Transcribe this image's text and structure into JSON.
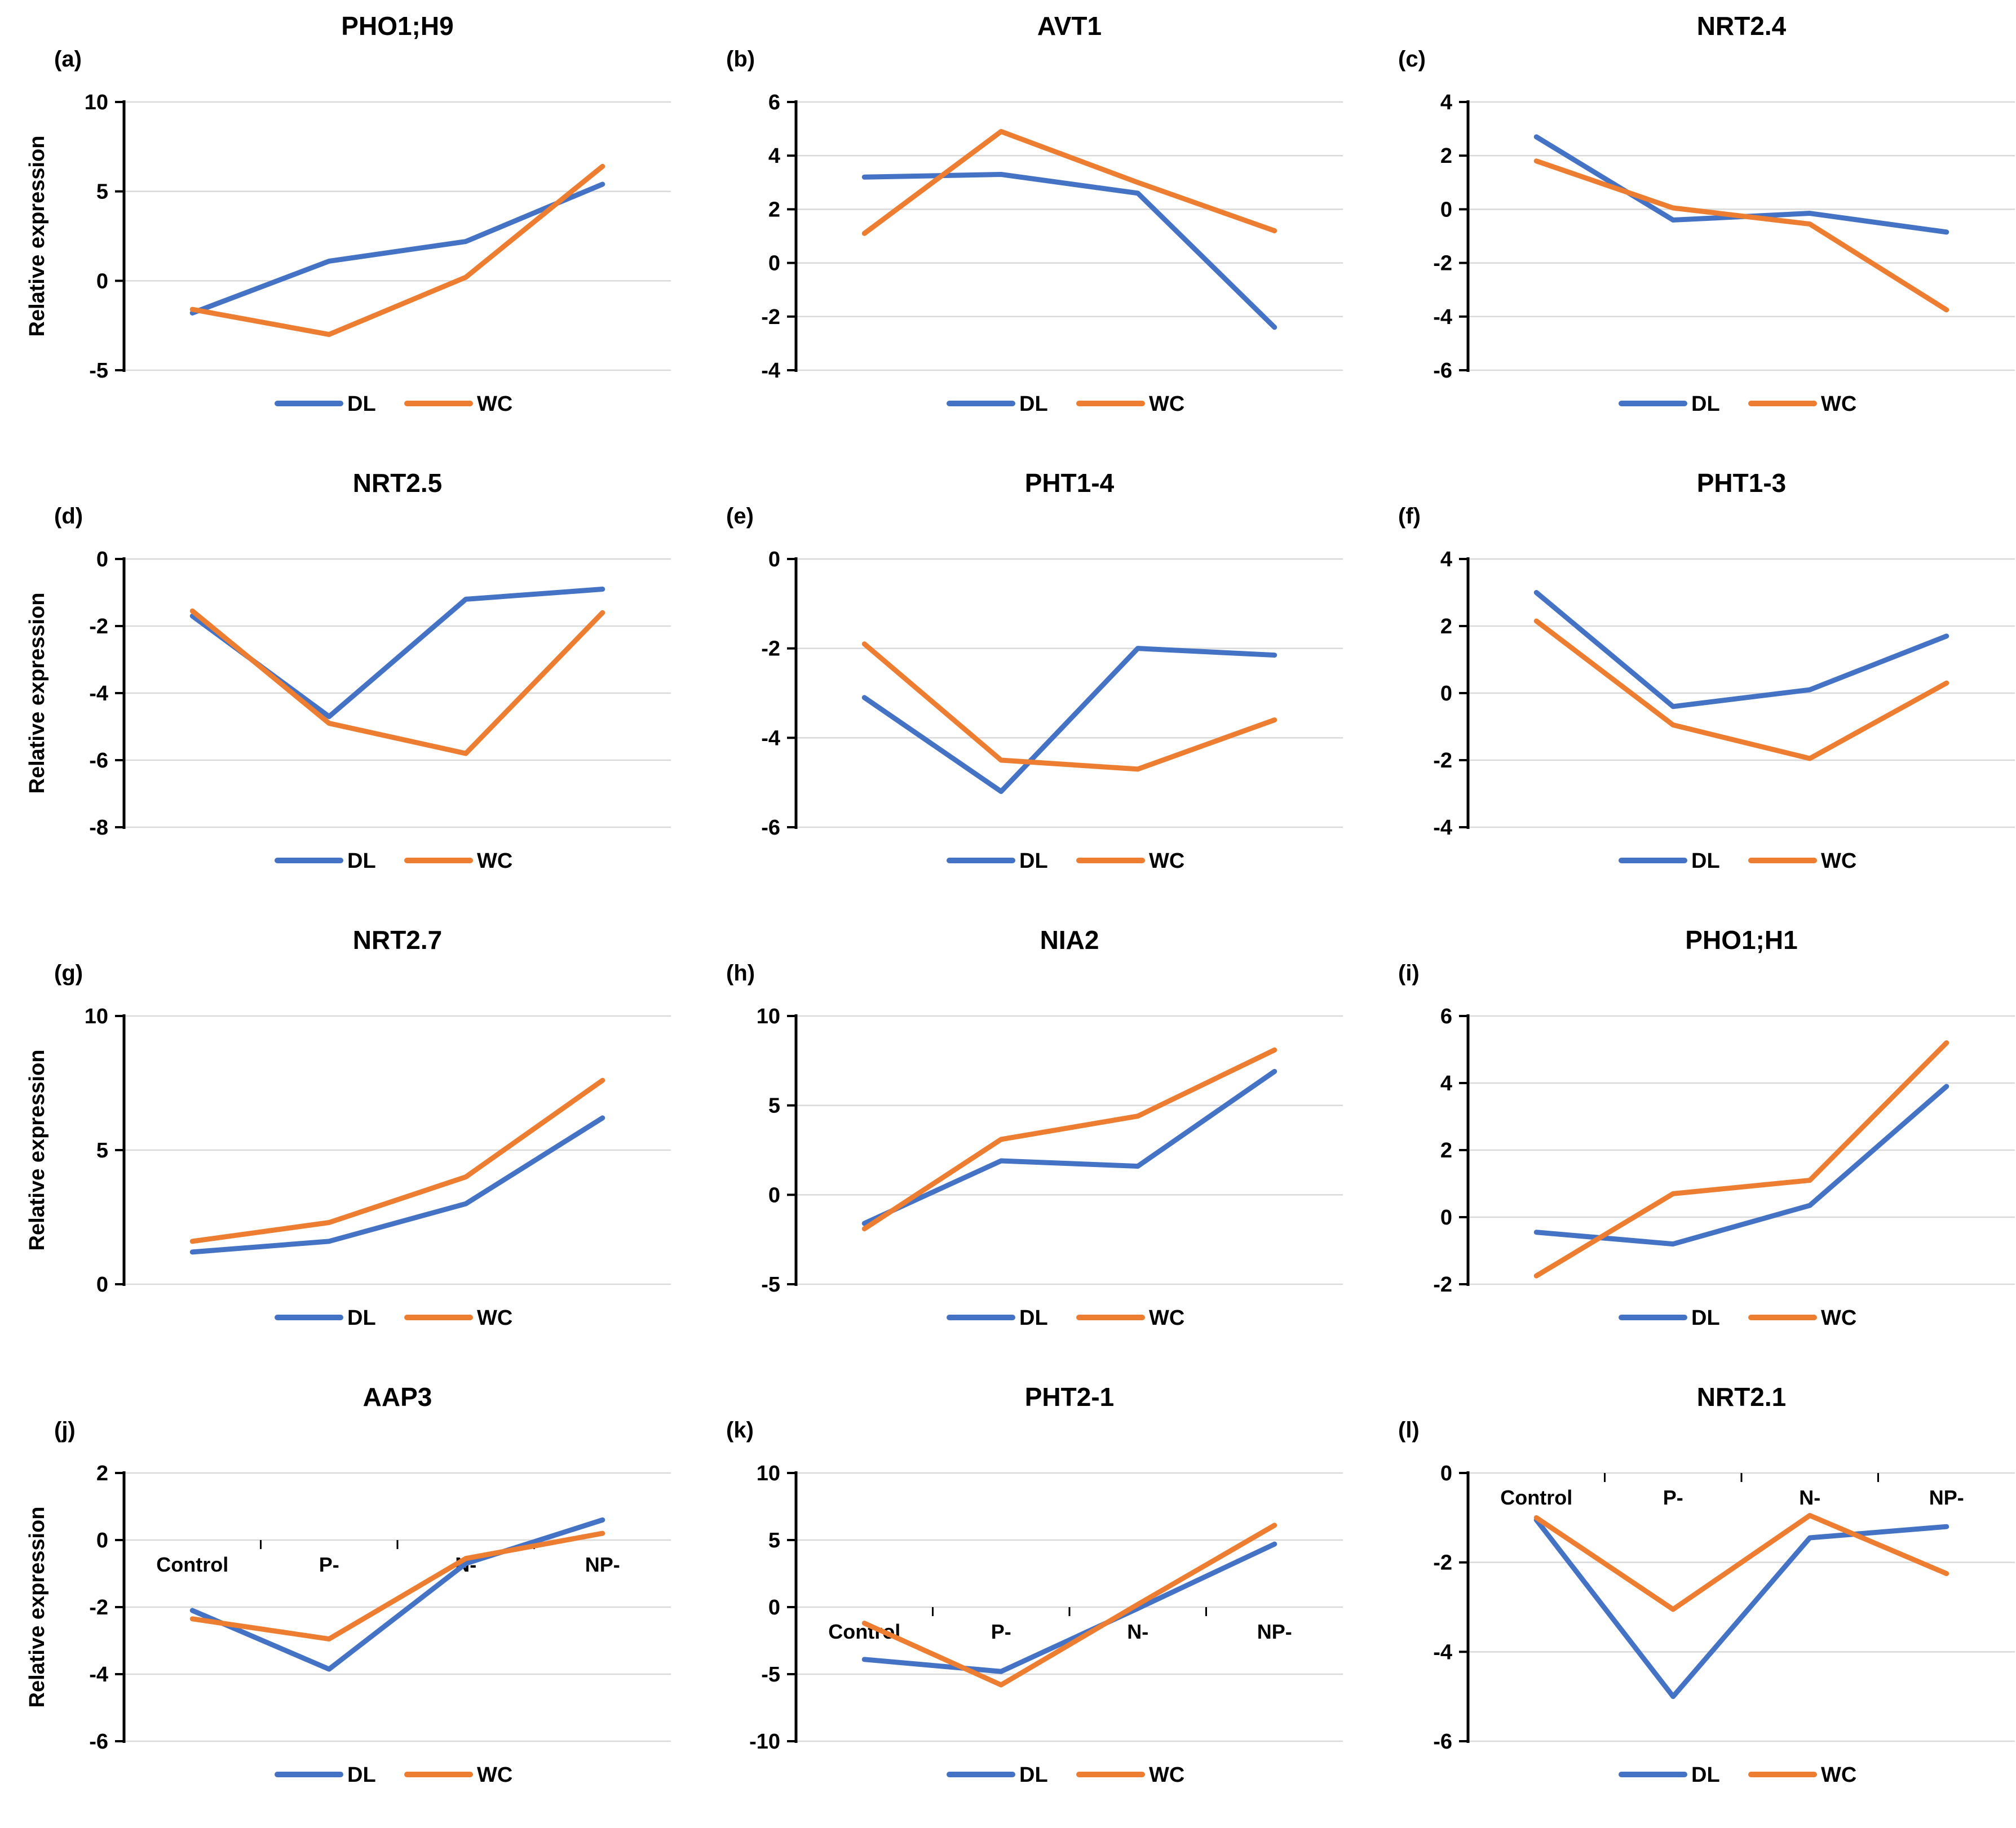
{
  "page": {
    "background": "#FFFFFF"
  },
  "colors": {
    "DL": "#4472C4",
    "WC": "#ED7D31",
    "gridline": "#D9D9D9",
    "axis": "#000000",
    "text": "#000000"
  },
  "y_axis_title": "Relative expression",
  "categories": [
    "Control",
    "P-",
    "N-",
    "NP-"
  ],
  "legend": {
    "entries": [
      "DL",
      "WC"
    ],
    "position": "bottom"
  },
  "chart_data": [
    {
      "panel_label": "(a)",
      "title": "PHO1;H9",
      "type": "line",
      "ylim": [
        -5,
        10
      ],
      "y_ticks": [
        10,
        5,
        0,
        -5
      ],
      "grid": true,
      "show_y_axis_title": true,
      "show_x_labels": false,
      "series": [
        {
          "name": "DL",
          "values": [
            -1.8,
            1.1,
            2.2,
            5.4
          ]
        },
        {
          "name": "WC",
          "values": [
            -1.6,
            -3.0,
            0.2,
            6.4
          ]
        }
      ]
    },
    {
      "panel_label": "(b)",
      "title": "AVT1",
      "type": "line",
      "ylim": [
        -4,
        6
      ],
      "y_ticks": [
        6,
        4,
        2,
        0,
        -2,
        -4
      ],
      "grid": true,
      "show_y_axis_title": false,
      "show_x_labels": false,
      "series": [
        {
          "name": "DL",
          "values": [
            3.2,
            3.3,
            2.6,
            -2.4
          ]
        },
        {
          "name": "WC",
          "values": [
            1.1,
            4.9,
            3.0,
            1.2
          ]
        }
      ]
    },
    {
      "panel_label": "(c)",
      "title": "NRT2.4",
      "type": "line",
      "ylim": [
        -6,
        4
      ],
      "y_ticks": [
        4,
        2,
        0,
        -2,
        -4,
        -6
      ],
      "grid": true,
      "show_y_axis_title": false,
      "show_x_labels": false,
      "series": [
        {
          "name": "DL",
          "values": [
            2.7,
            -0.4,
            -0.15,
            -0.85
          ]
        },
        {
          "name": "WC",
          "values": [
            1.8,
            0.05,
            -0.55,
            -3.75
          ]
        }
      ]
    },
    {
      "panel_label": "(d)",
      "title": "NRT2.5",
      "type": "line",
      "ylim": [
        -8,
        0
      ],
      "y_ticks": [
        0,
        -2,
        -4,
        -6,
        -8
      ],
      "grid": true,
      "show_y_axis_title": true,
      "show_x_labels": false,
      "series": [
        {
          "name": "DL",
          "values": [
            -1.7,
            -4.7,
            -1.2,
            -0.9
          ]
        },
        {
          "name": "WC",
          "values": [
            -1.55,
            -4.9,
            -5.8,
            -1.6
          ]
        }
      ]
    },
    {
      "panel_label": "(e)",
      "title": "PHT1-4",
      "type": "line",
      "ylim": [
        -6,
        0
      ],
      "y_ticks": [
        0,
        -2,
        -4,
        -6
      ],
      "grid": true,
      "show_y_axis_title": false,
      "show_x_labels": false,
      "series": [
        {
          "name": "DL",
          "values": [
            -3.1,
            -5.2,
            -2.0,
            -2.15
          ]
        },
        {
          "name": "WC",
          "values": [
            -1.9,
            -4.5,
            -4.7,
            -3.6
          ]
        }
      ]
    },
    {
      "panel_label": "(f)",
      "title": "PHT1-3",
      "type": "line",
      "ylim": [
        -4,
        4
      ],
      "y_ticks": [
        4,
        2,
        0,
        -2,
        -4
      ],
      "grid": true,
      "show_y_axis_title": false,
      "show_x_labels": false,
      "series": [
        {
          "name": "DL",
          "values": [
            3.0,
            -0.4,
            0.1,
            1.7
          ]
        },
        {
          "name": "WC",
          "values": [
            2.15,
            -0.95,
            -1.95,
            0.3
          ]
        }
      ]
    },
    {
      "panel_label": "(g)",
      "title": "NRT2.7",
      "type": "line",
      "ylim": [
        0,
        10
      ],
      "y_ticks": [
        10,
        5,
        0
      ],
      "grid": true,
      "show_y_axis_title": true,
      "show_x_labels": false,
      "series": [
        {
          "name": "DL",
          "values": [
            1.2,
            1.6,
            3.0,
            6.2
          ]
        },
        {
          "name": "WC",
          "values": [
            1.6,
            2.3,
            4.0,
            7.6
          ]
        }
      ]
    },
    {
      "panel_label": "(h)",
      "title": "NIA2",
      "type": "line",
      "ylim": [
        -5,
        10
      ],
      "y_ticks": [
        10,
        5,
        0,
        -5
      ],
      "grid": true,
      "show_y_axis_title": false,
      "show_x_labels": false,
      "series": [
        {
          "name": "DL",
          "values": [
            -1.6,
            1.9,
            1.6,
            6.9
          ]
        },
        {
          "name": "WC",
          "values": [
            -1.9,
            3.1,
            4.4,
            8.1
          ]
        }
      ]
    },
    {
      "panel_label": "(i)",
      "title": "PHO1;H1",
      "type": "line",
      "ylim": [
        -2,
        6
      ],
      "y_ticks": [
        6,
        4,
        2,
        0,
        -2
      ],
      "grid": true,
      "show_y_axis_title": false,
      "show_x_labels": false,
      "series": [
        {
          "name": "DL",
          "values": [
            -0.45,
            -0.8,
            0.35,
            3.9
          ]
        },
        {
          "name": "WC",
          "values": [
            -1.75,
            0.7,
            1.1,
            5.2
          ]
        }
      ]
    },
    {
      "panel_label": "(j)",
      "title": "AAP3",
      "type": "line",
      "ylim": [
        -6,
        2
      ],
      "y_ticks": [
        2,
        0,
        -2,
        -4,
        -6
      ],
      "grid": true,
      "show_y_axis_title": true,
      "show_x_labels": true,
      "series": [
        {
          "name": "DL",
          "values": [
            -2.1,
            -3.85,
            -0.7,
            0.6
          ]
        },
        {
          "name": "WC",
          "values": [
            -2.35,
            -2.95,
            -0.55,
            0.2
          ]
        }
      ]
    },
    {
      "panel_label": "(k)",
      "title": "PHT2-1",
      "type": "line",
      "ylim": [
        -10,
        10
      ],
      "y_ticks": [
        10,
        5,
        0,
        -5,
        -10
      ],
      "grid": true,
      "show_y_axis_title": false,
      "show_x_labels": true,
      "series": [
        {
          "name": "DL",
          "values": [
            -3.9,
            -4.8,
            -0.1,
            4.7
          ]
        },
        {
          "name": "WC",
          "values": [
            -1.2,
            -5.8,
            0.2,
            6.1
          ]
        }
      ]
    },
    {
      "panel_label": "(l)",
      "title": "NRT2.1",
      "type": "line",
      "ylim": [
        -6,
        0
      ],
      "y_ticks": [
        0,
        -2,
        -4,
        -6
      ],
      "grid": true,
      "show_y_axis_title": false,
      "show_x_labels": true,
      "series": [
        {
          "name": "DL",
          "values": [
            -1.05,
            -5.0,
            -1.45,
            -1.2
          ]
        },
        {
          "name": "WC",
          "values": [
            -1.0,
            -3.05,
            -0.95,
            -2.25
          ]
        }
      ]
    }
  ]
}
